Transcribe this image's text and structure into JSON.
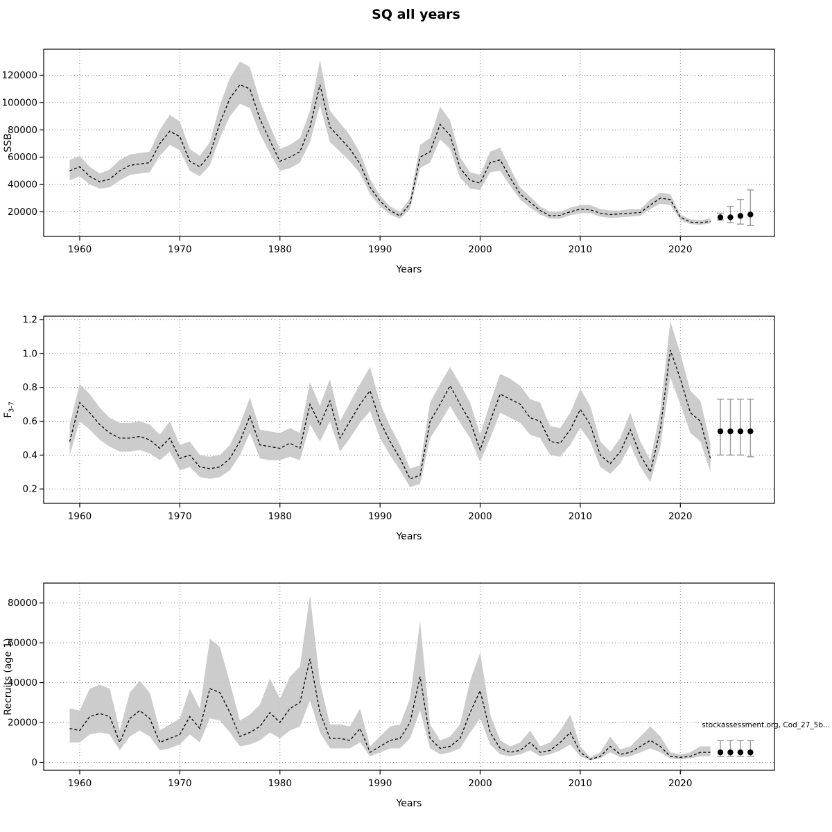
{
  "title": "SQ all years",
  "watermark": "stockassessment.org, Cod_27_5b...",
  "colors": {
    "band": "#c7c7c7",
    "line": "#000000",
    "errorbar": "#9c9c9c",
    "grid": "#808080",
    "dot": "#000000"
  },
  "chart_data": [
    {
      "type": "line",
      "name": "ssb",
      "title": "",
      "xlabel": "Years",
      "ylabel": "SSB",
      "ylabel_sub": "",
      "legend": "none",
      "grid": true,
      "xlim": [
        1956.4,
        2029.4
      ],
      "ylim": [
        2000,
        139000
      ],
      "xticks": [
        1960,
        1970,
        1980,
        1990,
        2000,
        2010,
        2020
      ],
      "yticks": [
        20000,
        40000,
        60000,
        80000,
        100000,
        120000
      ],
      "ytick_labels": [
        "20000",
        "40000",
        "60000",
        "80000",
        "100000",
        "120000"
      ],
      "forecast_start": 2024,
      "x": [
        1959,
        1960,
        1961,
        1962,
        1963,
        1964,
        1965,
        1966,
        1967,
        1968,
        1969,
        1970,
        1971,
        1972,
        1973,
        1974,
        1975,
        1976,
        1977,
        1978,
        1979,
        1980,
        1981,
        1982,
        1983,
        1984,
        1985,
        1986,
        1987,
        1988,
        1989,
        1990,
        1991,
        1992,
        1993,
        1994,
        1995,
        1996,
        1997,
        1998,
        1999,
        2000,
        2001,
        2002,
        2003,
        2004,
        2005,
        2006,
        2007,
        2008,
        2009,
        2010,
        2011,
        2012,
        2013,
        2014,
        2015,
        2016,
        2017,
        2018,
        2019,
        2020,
        2021,
        2022,
        2023,
        2024,
        2025,
        2026,
        2027
      ],
      "series": [
        {
          "name": "estimate",
          "values": [
            50000,
            53000,
            46000,
            42000,
            44000,
            50000,
            54000,
            55000,
            56000,
            70000,
            79000,
            75000,
            57000,
            53000,
            62000,
            85000,
            103000,
            113000,
            110000,
            88000,
            72000,
            57000,
            60000,
            64000,
            82000,
            113000,
            82000,
            74000,
            66000,
            55000,
            38000,
            28000,
            21000,
            17000,
            26000,
            60000,
            64000,
            84000,
            76000,
            52000,
            43000,
            41000,
            56000,
            58000,
            45000,
            33000,
            27000,
            21000,
            17000,
            17500,
            20000,
            22000,
            21500,
            19000,
            18000,
            18500,
            19000,
            19500,
            25000,
            30000,
            29000,
            16000,
            12500,
            12000,
            13000,
            16000,
            16000,
            17000,
            18000
          ]
        },
        {
          "name": "lower",
          "values": [
            43000,
            46000,
            40000,
            37000,
            38000,
            43000,
            47000,
            48000,
            49000,
            61000,
            69000,
            65000,
            50000,
            46000,
            54000,
            74000,
            90000,
            99000,
            96000,
            77000,
            63000,
            50000,
            52000,
            56000,
            71000,
            98000,
            71000,
            64000,
            57000,
            48000,
            33000,
            24000,
            18000,
            15000,
            22000,
            52000,
            56000,
            73000,
            66000,
            45000,
            37000,
            36000,
            49000,
            50000,
            39000,
            29000,
            23000,
            18000,
            15000,
            15000,
            17500,
            19000,
            19000,
            16500,
            15500,
            16000,
            16500,
            17000,
            22000,
            26000,
            25000,
            14000,
            11000,
            10500,
            11500,
            14000,
            12000,
            11000,
            10000
          ]
        },
        {
          "name": "upper",
          "values": [
            58000,
            61000,
            53000,
            48000,
            51000,
            58000,
            62000,
            63000,
            64000,
            80000,
            91000,
            86000,
            66000,
            61000,
            71000,
            98000,
            118000,
            130000,
            126000,
            101000,
            83000,
            66000,
            69000,
            74000,
            94000,
            131000,
            94000,
            85000,
            76000,
            63000,
            44000,
            32000,
            24000,
            20000,
            30000,
            69000,
            74000,
            97000,
            87000,
            60000,
            49000,
            47000,
            64000,
            67000,
            52000,
            38000,
            31000,
            24000,
            20000,
            20000,
            23000,
            25000,
            25000,
            22000,
            21000,
            21000,
            22000,
            22000,
            29000,
            34000,
            33000,
            18000,
            14500,
            14000,
            15000,
            19000,
            24000,
            29000,
            36000
          ]
        }
      ]
    },
    {
      "type": "line",
      "name": "fishing-mortality",
      "title": "",
      "xlabel": "Years",
      "ylabel": "F",
      "ylabel_sub": "3-7",
      "legend": "none",
      "grid": true,
      "xlim": [
        1956.4,
        2029.4
      ],
      "ylim": [
        0.115,
        1.22
      ],
      "xticks": [
        1960,
        1970,
        1980,
        1990,
        2000,
        2010,
        2020
      ],
      "yticks": [
        0.2,
        0.4,
        0.6,
        0.8,
        1.0,
        1.2
      ],
      "ytick_labels": [
        "0.2",
        "0.4",
        "0.6",
        "0.8",
        "1.0",
        "1.2"
      ],
      "forecast_start": 2024,
      "x": [
        1959,
        1960,
        1961,
        1962,
        1963,
        1964,
        1965,
        1966,
        1967,
        1968,
        1969,
        1970,
        1971,
        1972,
        1973,
        1974,
        1975,
        1976,
        1977,
        1978,
        1979,
        1980,
        1981,
        1982,
        1983,
        1984,
        1985,
        1986,
        1987,
        1988,
        1989,
        1990,
        1991,
        1992,
        1993,
        1994,
        1995,
        1996,
        1997,
        1998,
        1999,
        2000,
        2001,
        2002,
        2003,
        2004,
        2005,
        2006,
        2007,
        2008,
        2009,
        2010,
        2011,
        2012,
        2013,
        2014,
        2015,
        2016,
        2017,
        2018,
        2019,
        2020,
        2021,
        2022,
        2023,
        2024,
        2025,
        2026,
        2027
      ],
      "series": [
        {
          "name": "estimate",
          "values": [
            0.48,
            0.71,
            0.65,
            0.58,
            0.53,
            0.5,
            0.5,
            0.51,
            0.49,
            0.44,
            0.5,
            0.38,
            0.4,
            0.33,
            0.32,
            0.33,
            0.38,
            0.48,
            0.63,
            0.46,
            0.45,
            0.44,
            0.47,
            0.44,
            0.7,
            0.58,
            0.72,
            0.5,
            0.6,
            0.7,
            0.78,
            0.6,
            0.48,
            0.38,
            0.26,
            0.28,
            0.6,
            0.7,
            0.81,
            0.7,
            0.6,
            0.43,
            0.6,
            0.76,
            0.73,
            0.7,
            0.62,
            0.6,
            0.48,
            0.47,
            0.55,
            0.67,
            0.58,
            0.4,
            0.35,
            0.42,
            0.55,
            0.4,
            0.3,
            0.55,
            1.02,
            0.85,
            0.65,
            0.6,
            0.38,
            0.54,
            0.54,
            0.54,
            0.54
          ]
        },
        {
          "name": "lower",
          "values": [
            0.4,
            0.6,
            0.55,
            0.49,
            0.45,
            0.42,
            0.42,
            0.43,
            0.41,
            0.37,
            0.42,
            0.31,
            0.33,
            0.27,
            0.26,
            0.27,
            0.31,
            0.4,
            0.53,
            0.38,
            0.37,
            0.37,
            0.39,
            0.37,
            0.58,
            0.48,
            0.6,
            0.42,
            0.5,
            0.59,
            0.66,
            0.5,
            0.4,
            0.31,
            0.21,
            0.23,
            0.5,
            0.59,
            0.69,
            0.59,
            0.5,
            0.36,
            0.5,
            0.65,
            0.62,
            0.59,
            0.52,
            0.5,
            0.4,
            0.39,
            0.46,
            0.56,
            0.48,
            0.33,
            0.29,
            0.35,
            0.46,
            0.33,
            0.24,
            0.45,
            0.86,
            0.7,
            0.53,
            0.48,
            0.3,
            0.4,
            0.4,
            0.4,
            0.39
          ]
        },
        {
          "name": "upper",
          "values": [
            0.58,
            0.82,
            0.76,
            0.68,
            0.62,
            0.59,
            0.59,
            0.6,
            0.58,
            0.52,
            0.6,
            0.46,
            0.48,
            0.4,
            0.39,
            0.4,
            0.46,
            0.58,
            0.74,
            0.55,
            0.54,
            0.53,
            0.56,
            0.53,
            0.83,
            0.69,
            0.85,
            0.6,
            0.71,
            0.82,
            0.92,
            0.71,
            0.57,
            0.46,
            0.32,
            0.34,
            0.71,
            0.82,
            0.92,
            0.82,
            0.71,
            0.52,
            0.71,
            0.88,
            0.85,
            0.81,
            0.73,
            0.71,
            0.57,
            0.56,
            0.65,
            0.79,
            0.69,
            0.48,
            0.42,
            0.5,
            0.65,
            0.48,
            0.37,
            0.66,
            1.19,
            1.0,
            0.78,
            0.72,
            0.47,
            0.73,
            0.73,
            0.73,
            0.73
          ]
        }
      ]
    },
    {
      "type": "line",
      "name": "recruits",
      "title": "",
      "xlabel": "Years",
      "ylabel": "Recruits (age 1)",
      "ylabel_sub": "",
      "legend": "none",
      "grid": true,
      "xlim": [
        1956.4,
        2029.4
      ],
      "ylim": [
        -4000,
        90000
      ],
      "xticks": [
        1960,
        1970,
        1980,
        1990,
        2000,
        2010,
        2020
      ],
      "yticks": [
        0,
        20000,
        40000,
        60000,
        80000
      ],
      "ytick_labels": [
        "0",
        "20000",
        "40000",
        "60000",
        "80000"
      ],
      "forecast_start": 2024,
      "x": [
        1959,
        1960,
        1961,
        1962,
        1963,
        1964,
        1965,
        1966,
        1967,
        1968,
        1969,
        1970,
        1971,
        1972,
        1973,
        1974,
        1975,
        1976,
        1977,
        1978,
        1979,
        1980,
        1981,
        1982,
        1983,
        1984,
        1985,
        1986,
        1987,
        1988,
        1989,
        1990,
        1991,
        1992,
        1993,
        1994,
        1995,
        1996,
        1997,
        1998,
        1999,
        2000,
        2001,
        2002,
        2003,
        2004,
        2005,
        2006,
        2007,
        2008,
        2009,
        2010,
        2011,
        2012,
        2013,
        2014,
        2015,
        2016,
        2017,
        2018,
        2019,
        2020,
        2021,
        2022,
        2023,
        2024,
        2025,
        2026,
        2027
      ],
      "series": [
        {
          "name": "estimate",
          "values": [
            17000,
            16000,
            23000,
            24500,
            23000,
            10000,
            22000,
            26000,
            22000,
            10000,
            12000,
            14000,
            23000,
            17000,
            37000,
            35000,
            25000,
            13000,
            15000,
            18000,
            25000,
            20000,
            27000,
            30000,
            52000,
            25000,
            12000,
            12000,
            11000,
            17000,
            5000,
            8000,
            11000,
            12000,
            20000,
            43000,
            12000,
            7000,
            8000,
            12000,
            25000,
            36000,
            15000,
            7000,
            5000,
            6000,
            10000,
            5000,
            6000,
            10000,
            15000,
            5000,
            1500,
            3000,
            8000,
            4000,
            5000,
            8000,
            11000,
            8000,
            3000,
            2500,
            3000,
            5000,
            5000,
            5000,
            5000,
            5000,
            5000
          ]
        },
        {
          "name": "lower",
          "values": [
            10000,
            10000,
            14000,
            15000,
            14000,
            6000,
            13000,
            16000,
            13000,
            6000,
            7000,
            9000,
            14000,
            10000,
            22000,
            21000,
            15000,
            8000,
            9000,
            11000,
            15000,
            12000,
            16000,
            18000,
            31000,
            15000,
            7000,
            7000,
            7000,
            10000,
            3000,
            5000,
            7000,
            7000,
            12000,
            26000,
            7000,
            4000,
            5000,
            7000,
            15000,
            22000,
            9000,
            4000,
            3000,
            4000,
            6000,
            3000,
            4000,
            6000,
            9000,
            3000,
            1000,
            2000,
            5000,
            2500,
            3000,
            5000,
            7000,
            5000,
            2000,
            1500,
            2000,
            3000,
            3000,
            3000,
            3000,
            3000,
            3000
          ]
        },
        {
          "name": "upper",
          "values": [
            27000,
            26000,
            37000,
            39000,
            37000,
            16000,
            35000,
            41000,
            35000,
            16000,
            19000,
            22000,
            37000,
            27000,
            62000,
            58000,
            40000,
            21000,
            24000,
            29000,
            42000,
            32000,
            43000,
            48000,
            84000,
            40000,
            19000,
            19000,
            18000,
            27000,
            8000,
            13000,
            18000,
            19000,
            32000,
            71000,
            19000,
            11000,
            13000,
            19000,
            41000,
            55000,
            24000,
            11000,
            8000,
            10000,
            16000,
            8000,
            10000,
            16000,
            24000,
            8000,
            2500,
            5000,
            13000,
            6500,
            8000,
            13000,
            18000,
            13000,
            5000,
            4000,
            5000,
            8000,
            8000,
            11000,
            11000,
            11000,
            11000
          ]
        }
      ]
    }
  ]
}
